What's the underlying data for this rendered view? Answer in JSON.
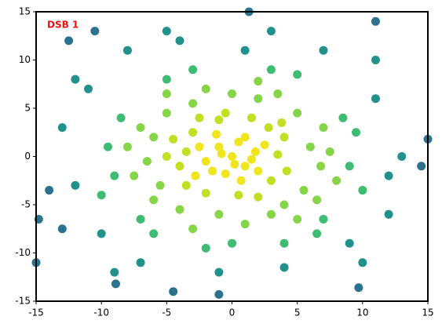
{
  "chart_data": {
    "type": "scatter",
    "annotation": "DSB 1",
    "annotation_color": "#ee1111",
    "xlim": [
      -15,
      15
    ],
    "ylim": [
      -15,
      15
    ],
    "xticks": [
      -15,
      -10,
      -5,
      0,
      5,
      10,
      15
    ],
    "yticks": [
      -15,
      -10,
      -5,
      0,
      5,
      10,
      15
    ],
    "series": [
      {
        "color": "#2c728e",
        "x": [
          -14,
          -15,
          15,
          -12.5,
          -13,
          11,
          9.7,
          -1,
          1.3,
          -4.5,
          -14.8,
          14.5,
          -8.9,
          -10.5
        ],
        "y": [
          -3.5,
          -11,
          1.8,
          12,
          -7.5,
          14,
          -13.6,
          -14.3,
          15,
          -14,
          -6.5,
          -1,
          -13.2,
          13
        ]
      },
      {
        "color": "#21918c",
        "x": [
          -11,
          11,
          -12,
          12,
          -10,
          9,
          -8,
          7,
          -4,
          4,
          -1,
          1,
          -13,
          13,
          -12,
          12,
          -7,
          10,
          -9,
          3,
          -5,
          11
        ],
        "y": [
          7,
          6,
          -3,
          -2,
          -8,
          -9,
          11,
          11,
          12,
          -11.5,
          -12,
          11,
          3,
          0,
          8,
          -6,
          -11,
          -11,
          -12,
          13,
          13,
          10
        ]
      },
      {
        "color": "#3fbc73",
        "x": [
          -8.5,
          8.5,
          -9,
          9,
          -7,
          7,
          -3,
          3,
          0,
          -5,
          5,
          -2,
          4,
          9.5,
          -9.5,
          -6,
          6.5,
          10,
          -10
        ],
        "y": [
          4,
          4,
          -2,
          -1,
          -6.5,
          -6.5,
          9,
          9,
          -9,
          8,
          8.5,
          -9.5,
          -9,
          2.5,
          1,
          -8,
          -8,
          -3.5,
          -4
        ]
      },
      {
        "color": "#86d549",
        "x": [
          -6,
          -5.5,
          6,
          5.5,
          -3,
          2,
          -1,
          3,
          -6.5,
          6.8,
          0,
          -4,
          5,
          -5,
          4,
          -7,
          7,
          1,
          -2,
          3.5,
          -6,
          6.5,
          -7.5,
          7.5,
          -8,
          8,
          2,
          -3,
          5,
          -5
        ],
        "y": [
          2,
          -3,
          1,
          -3.5,
          5.5,
          6,
          -6,
          -6,
          -0.5,
          -1,
          6.5,
          -5.5,
          4.5,
          4.5,
          -5,
          3,
          3,
          -7,
          7,
          6.5,
          -4.5,
          -4.5,
          -2,
          0.5,
          1,
          -2.5,
          7.8,
          -7.5,
          -6.5,
          6.5
        ]
      },
      {
        "color": "#c2df23",
        "x": [
          -3.5,
          -4,
          3.5,
          3,
          -3,
          2.8,
          -1,
          0.5,
          -2,
          4,
          -4.5,
          1.5,
          -3.5,
          4.2,
          -0.5,
          2,
          -5,
          3.8,
          -2.5
        ],
        "y": [
          0.5,
          -1,
          0.2,
          -2.5,
          2.5,
          3,
          3.8,
          -4,
          -3.8,
          2,
          1.8,
          4,
          -3,
          -1.5,
          4.5,
          -4.2,
          0,
          3.5,
          4
        ]
      },
      {
        "color": "#f1e51d",
        "x": [
          0,
          -1,
          1,
          -2,
          0.5,
          -0.5,
          1.8,
          -1.5,
          0.2,
          -2.5,
          1,
          -0.8,
          2,
          -1.2,
          0.7,
          2.5,
          -2.8,
          1.5
        ],
        "y": [
          0,
          1,
          -1,
          -0.5,
          1.5,
          -1.8,
          0.5,
          -1.5,
          -0.8,
          1,
          2,
          0.3,
          -1.5,
          2.3,
          -2.5,
          1.2,
          -2,
          -0.3
        ]
      }
    ]
  }
}
